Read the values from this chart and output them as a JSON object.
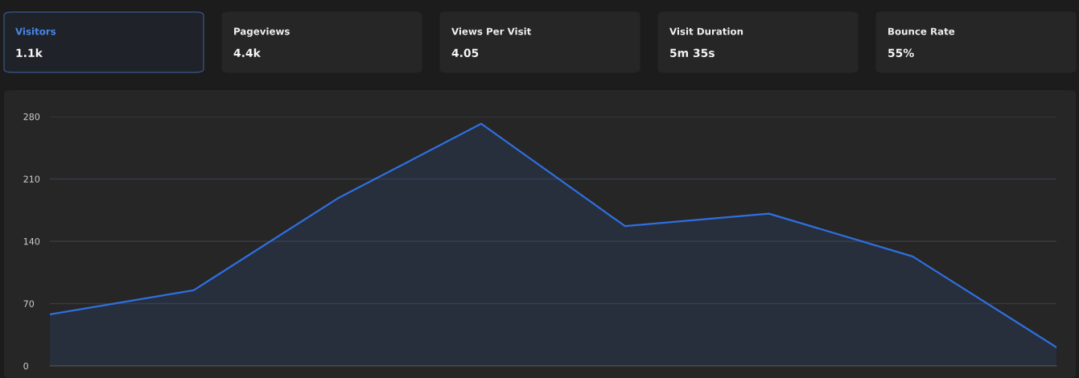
{
  "chart_data": [
    {
      "type": "other",
      "annotations": [
        "Visitors",
        "1.1k",
        "Pageviews",
        "4.4k",
        "Views Per Visit",
        "4.05",
        "Visit Duration",
        "5m 35s",
        "Bounce Rate",
        "55%"
      ]
    },
    {
      "type": "area",
      "categories": [
        null,
        null,
        null,
        null,
        null,
        null,
        null,
        null
      ],
      "values": [
        58,
        85,
        188,
        272,
        157,
        171,
        123,
        21
      ],
      "color": "#2f6fdf",
      "ylim": [
        0,
        280
      ],
      "yticks": [
        0,
        70,
        140,
        210,
        280
      ],
      "grid": "y",
      "tick_labels": "y"
    }
  ]
}
